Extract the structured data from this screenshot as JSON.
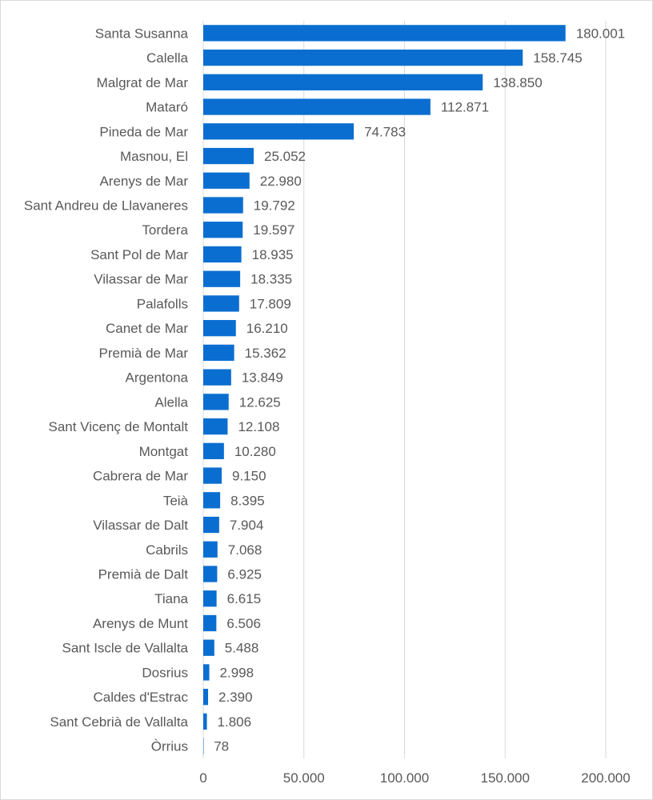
{
  "chart_data": {
    "type": "bar",
    "orientation": "horizontal",
    "title": "",
    "xlabel": "",
    "ylabel": "",
    "xlim": [
      0,
      200000
    ],
    "grid": true,
    "legend": "none",
    "bar_color": "#0A6ED1",
    "categories": [
      "Santa Susanna",
      "Calella",
      "Malgrat de Mar",
      "Mataró",
      "Pineda de Mar",
      "Masnou, El",
      "Arenys de Mar",
      "Sant Andreu de Llavaneres",
      "Tordera",
      "Sant Pol de Mar",
      "Vilassar de Mar",
      "Palafolls",
      "Canet de Mar",
      "Premià de Mar",
      "Argentona",
      "Alella",
      "Sant Vicenç de Montalt",
      "Montgat",
      "Cabrera de Mar",
      "Teià",
      "Vilassar de Dalt",
      "Cabrils",
      "Premià de Dalt",
      "Tiana",
      "Arenys de Munt",
      "Sant Iscle de Vallalta",
      "Dosrius",
      "Caldes d'Estrac",
      "Sant Cebrià de Vallalta",
      "Òrrius"
    ],
    "values": [
      180001,
      158745,
      138850,
      112871,
      74783,
      25052,
      22980,
      19792,
      19597,
      18935,
      18335,
      17809,
      16210,
      15362,
      13849,
      12625,
      12108,
      10280,
      9150,
      8395,
      7904,
      7068,
      6925,
      6615,
      6506,
      5488,
      2998,
      2390,
      1806,
      78
    ],
    "value_labels": [
      "180.001",
      "158.745",
      "138.850",
      "112.871",
      "74.783",
      "25.052",
      "22.980",
      "19.792",
      "19.597",
      "18.935",
      "18.335",
      "17.809",
      "16.210",
      "15.362",
      "13.849",
      "12.625",
      "12.108",
      "10.280",
      "9.150",
      "8.395",
      "7.904",
      "7.068",
      "6.925",
      "6.615",
      "6.506",
      "5.488",
      "2.998",
      "2.390",
      "1.806",
      "78"
    ],
    "x_ticks": [
      0,
      50000,
      100000,
      150000,
      200000
    ],
    "x_tick_labels": [
      "0",
      "50.000",
      "100.000",
      "150.000",
      "200.000"
    ]
  }
}
